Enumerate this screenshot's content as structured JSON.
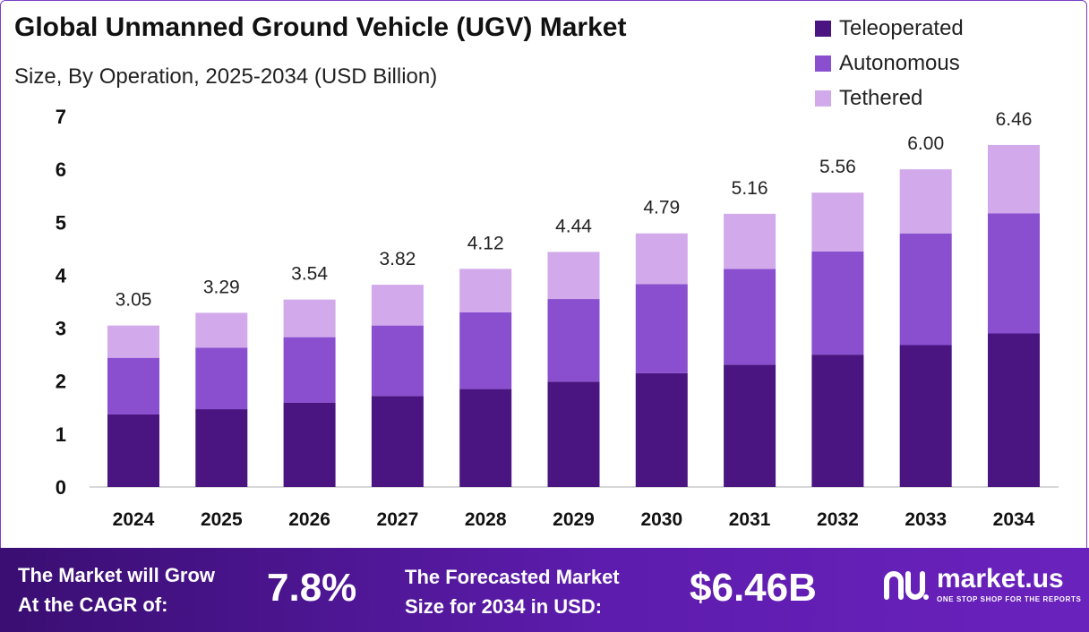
{
  "header": {
    "title": "Global Unmanned Ground Vehicle (UGV) Market",
    "subtitle": "Size, By Operation, 2025-2034 (USD Billion)"
  },
  "legend": {
    "items": [
      {
        "label": "Teleoperated",
        "color": "#4a1580"
      },
      {
        "label": "Autonomous",
        "color": "#8a4fcf"
      },
      {
        "label": "Tethered",
        "color": "#d2aaeb"
      }
    ]
  },
  "chart_data": {
    "type": "bar",
    "stacked": true,
    "categories": [
      "2024",
      "2025",
      "2026",
      "2027",
      "2028",
      "2029",
      "2030",
      "2031",
      "2032",
      "2033",
      "2034"
    ],
    "series": [
      {
        "name": "Teleoperated",
        "color": "#4a1580",
        "values": [
          1.37,
          1.47,
          1.59,
          1.72,
          1.85,
          1.99,
          2.15,
          2.31,
          2.5,
          2.68,
          2.9
        ]
      },
      {
        "name": "Autonomous",
        "color": "#8a4fcf",
        "values": [
          1.07,
          1.16,
          1.24,
          1.33,
          1.45,
          1.56,
          1.68,
          1.81,
          1.95,
          2.11,
          2.27
        ]
      },
      {
        "name": "Tethered",
        "color": "#d2aaeb",
        "values": [
          0.61,
          0.66,
          0.71,
          0.77,
          0.82,
          0.89,
          0.96,
          1.04,
          1.11,
          1.21,
          1.29
        ]
      }
    ],
    "totals": [
      "3.05",
      "3.29",
      "3.54",
      "3.82",
      "4.12",
      "4.44",
      "4.79",
      "5.16",
      "5.56",
      "6.00",
      "6.46"
    ],
    "y_ticks": [
      "0",
      "1",
      "2",
      "3",
      "4",
      "5",
      "6",
      "7"
    ],
    "ylim": [
      0,
      7
    ],
    "grid": false,
    "legend_position": "top-right",
    "title": "Global Unmanned Ground Vehicle (UGV) Market",
    "subtitle": "Size, By Operation, 2025-2034 (USD Billion)"
  },
  "footer": {
    "cagr_label": "The Market will Grow\nAt the CAGR of:",
    "cagr_value": "7.8%",
    "forecast_label": "The Forecasted Market\nSize for 2034 in USD:",
    "forecast_value": "$6.46B",
    "brand_name": "market.us",
    "brand_tagline": "ONE STOP SHOP FOR THE REPORTS"
  }
}
